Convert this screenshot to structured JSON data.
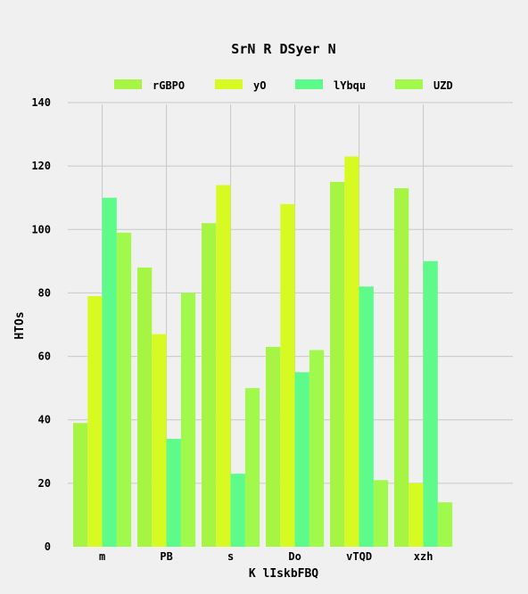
{
  "chart_data": {
    "type": "bar",
    "title": "SrN R DSyer N",
    "xlabel": "K lIskbFBQ",
    "ylabel": "HTOs",
    "categories": [
      "m",
      "PB",
      "s",
      "Do",
      "vTQD",
      "xzh"
    ],
    "ylim": [
      0,
      140
    ],
    "yticks": [
      0,
      20,
      40,
      60,
      80,
      100,
      120,
      140
    ],
    "grid": true,
    "legend_position": "top",
    "series": [
      {
        "name": "rGBPO",
        "color": "#a6f545",
        "values": [
          39,
          88,
          102,
          63,
          115,
          113
        ]
      },
      {
        "name": "yO",
        "color": "#d7fb22",
        "values": [
          79,
          67,
          114,
          108,
          123,
          20
        ]
      },
      {
        "name": "lYbqu",
        "color": "#5dfb8a",
        "values": [
          110,
          34,
          23,
          55,
          82,
          90
        ]
      },
      {
        "name": "UZD",
        "color": "#a0f94b",
        "values": [
          99,
          80,
          50,
          62,
          21,
          14
        ]
      }
    ]
  }
}
